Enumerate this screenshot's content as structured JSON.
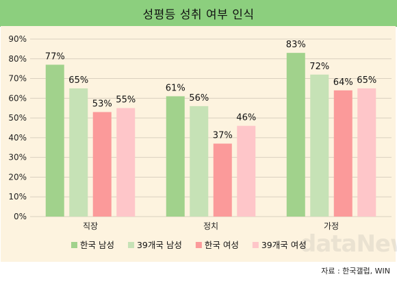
{
  "header": {
    "title": "성평등 성취 여부 인식"
  },
  "source": {
    "text": "자료 : 한국갤럽, WIN"
  },
  "watermark": {
    "text": "dataNews"
  },
  "colors": {
    "title_bg": "#8ccf7e",
    "panel_bg": "#fdf3df",
    "korea_men": "#a1d28c",
    "global_men": "#c6e2b6",
    "korea_women": "#fb9a9a",
    "global_women": "#fec6c9"
  },
  "chart_data": {
    "type": "bar",
    "title": "성평등 성취 여부 인식",
    "categories": [
      "직장",
      "정치",
      "가정"
    ],
    "series": [
      {
        "name": "한국 남성",
        "values": [
          77,
          61,
          83
        ],
        "labels": [
          "77%",
          "61%",
          "83%"
        ]
      },
      {
        "name": "39개국 남성",
        "values": [
          65,
          56,
          72
        ],
        "labels": [
          "65%",
          "56%",
          "72%"
        ]
      },
      {
        "name": "한국 여성",
        "values": [
          53,
          37,
          64
        ],
        "labels": [
          "53%",
          "37%",
          "64%"
        ]
      },
      {
        "name": "39개국 여성",
        "values": [
          55,
          46,
          65
        ],
        "labels": [
          "55%",
          "46%",
          "65%"
        ]
      }
    ],
    "ylim": [
      0,
      90
    ],
    "yticks": [
      "0%",
      "10%",
      "20%",
      "30%",
      "40%",
      "50%",
      "60%",
      "70%",
      "80%",
      "90%"
    ],
    "grid": true,
    "legend": "bottom"
  }
}
